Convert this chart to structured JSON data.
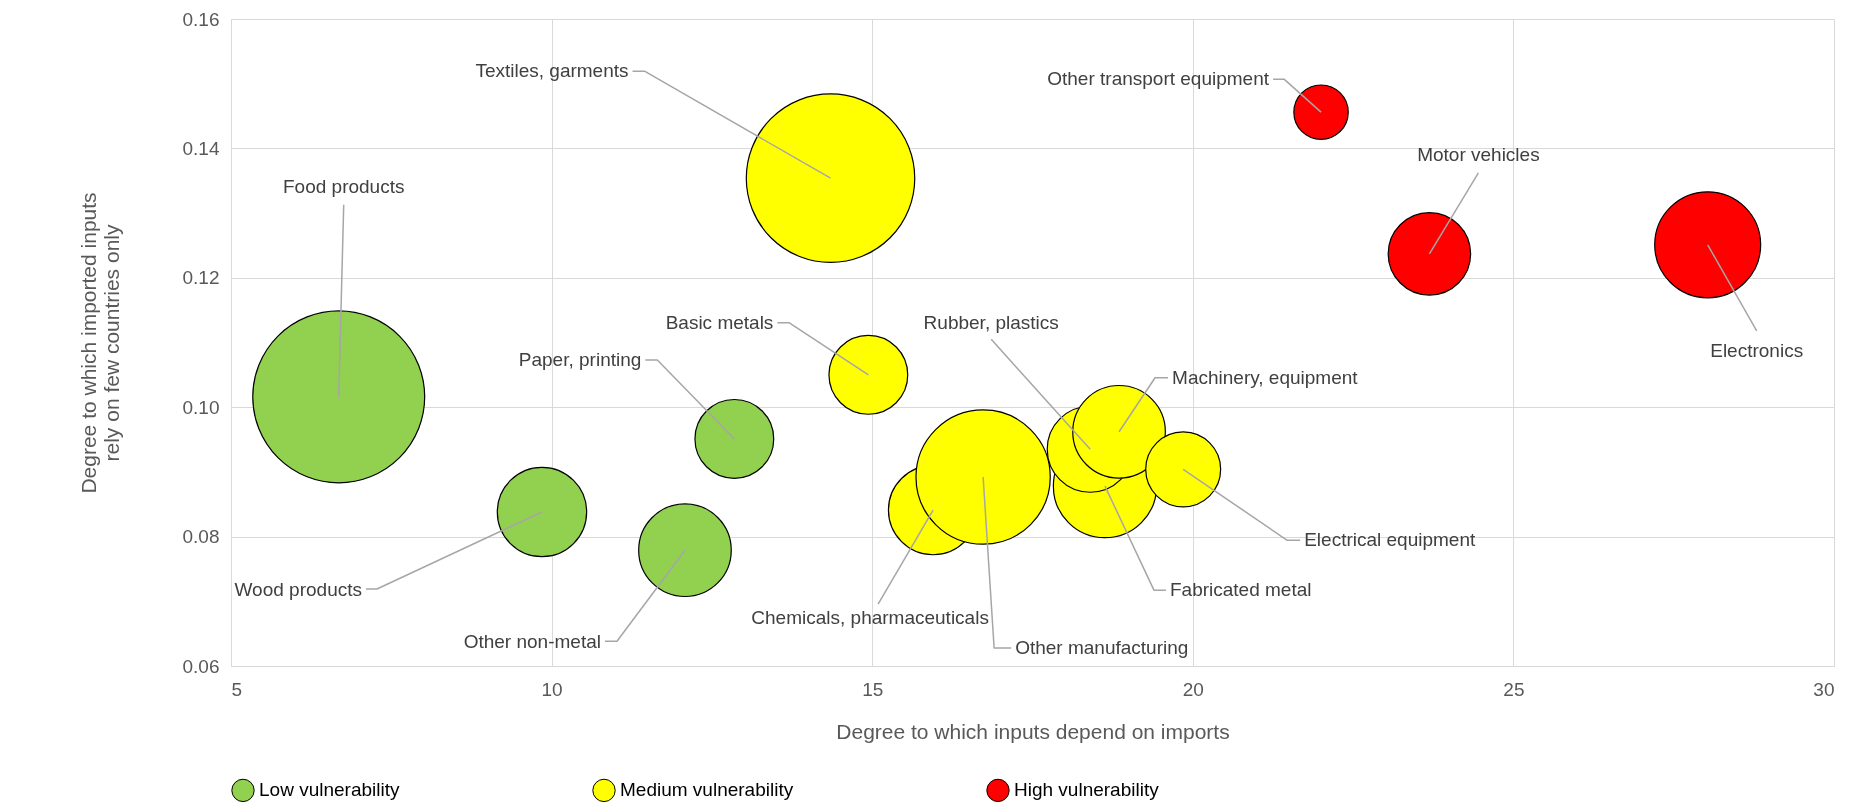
{
  "chart_data": {
    "type": "bubble",
    "xlabel": "Degree to which inputs depend on imports",
    "ylabel": "Degree to which imported inputs rely on few countries only",
    "xlim": [
      5,
      30
    ],
    "xticks": [
      5,
      10,
      15,
      20,
      25,
      30
    ],
    "ylim": [
      0.06,
      0.16
    ],
    "yticks": [
      0.06,
      0.08,
      {
        "value": 0.1,
        "label": "0.10"
      },
      0.12,
      0.14,
      0.16
    ],
    "grid": true,
    "legend": "bottom",
    "series": [
      {
        "name": "Low vulnerability",
        "color": "#92d050",
        "x": [
          6.68,
          9.85,
          12.08,
          12.85
        ],
        "values": [
          0.1016,
          0.0838,
          0.0779,
          0.0951
        ],
        "sizes": [
          1,
          0.27,
          0.29,
          0.21
        ]
      },
      {
        "name": "Medium vulnerability",
        "color": "#ffff00",
        "x": [
          14.35,
          14.94,
          15.95,
          16.73,
          18.63,
          18.4,
          18.85,
          19.85
        ],
        "values": [
          0.1354,
          0.105,
          0.0841,
          0.0892,
          0.0878,
          0.0935,
          0.0962,
          0.0904
        ],
        "sizes": [
          0.96,
          0.21,
          0.27,
          0.61,
          0.36,
          0.25,
          0.29,
          0.19
        ]
      },
      {
        "name": "High vulnerability",
        "color": "#ff0000",
        "x": [
          22.0,
          23.69,
          28.03
        ],
        "values": [
          0.1456,
          0.1237,
          0.1251
        ],
        "sizes": [
          0.1,
          0.23,
          0.38
        ]
      }
    ],
    "annotations": [
      {
        "text": "Food products",
        "x": 6.68,
        "y": 0.1016
      },
      {
        "text": "Wood products",
        "x": 9.85,
        "y": 0.0838
      },
      {
        "text": "Other non-metal",
        "x": 12.08,
        "y": 0.0779
      },
      {
        "text": "Paper, printing",
        "x": 12.85,
        "y": 0.0951
      },
      {
        "text": "Textiles, garments",
        "x": 14.35,
        "y": 0.1354
      },
      {
        "text": "Basic metals",
        "x": 14.94,
        "y": 0.105
      },
      {
        "text": "Rubber, plastics",
        "x": 18.4,
        "y": 0.0935
      },
      {
        "text": "Chemicals, pharmaceuticals",
        "x": 15.95,
        "y": 0.0841
      },
      {
        "text": "Other manufacturing",
        "x": 16.73,
        "y": 0.0892
      },
      {
        "text": "Fabricated metal",
        "x": 18.63,
        "y": 0.0878
      },
      {
        "text": "Machinery, equipment",
        "x": 18.85,
        "y": 0.0962
      },
      {
        "text": "Electrical equipment",
        "x": 19.85,
        "y": 0.0904
      },
      {
        "text": "Other transport equipment",
        "x": 22.0,
        "y": 0.1456
      },
      {
        "text": "Motor vehicles",
        "x": 23.69,
        "y": 0.1237
      },
      {
        "text": "Electronics",
        "x": 28.03,
        "y": 0.1251
      }
    ]
  }
}
